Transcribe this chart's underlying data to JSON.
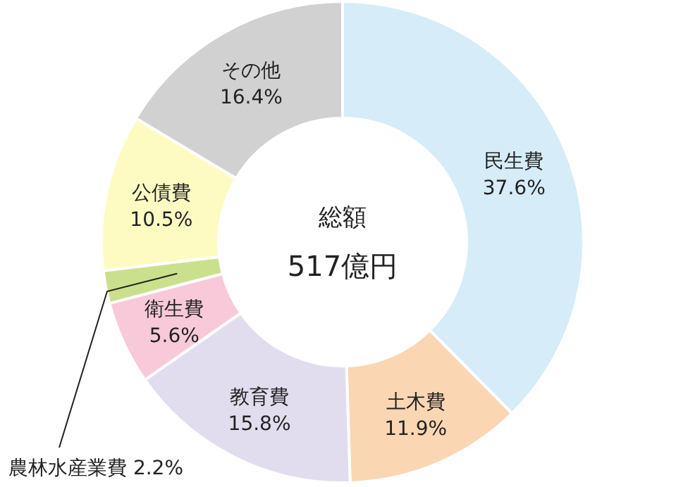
{
  "chart_data": {
    "type": "donut",
    "categories": [
      "民生費",
      "土木費",
      "教育費",
      "衛生費",
      "農林水産業費",
      "公債費",
      "その他"
    ],
    "values": [
      37.6,
      11.9,
      15.8,
      5.6,
      2.2,
      10.5,
      16.4
    ],
    "value_labels": [
      "37.6%",
      "11.9%",
      "15.8%",
      "5.6%",
      "2.2%",
      "10.5%",
      "16.4%"
    ],
    "colors": [
      "#d6ecf8",
      "#fbd6b2",
      "#e1ddee",
      "#f7c9d9",
      "#cbe08c",
      "#fdfbc2",
      "#d1d1d1"
    ],
    "annotations": [
      "総額",
      "517億円"
    ]
  }
}
